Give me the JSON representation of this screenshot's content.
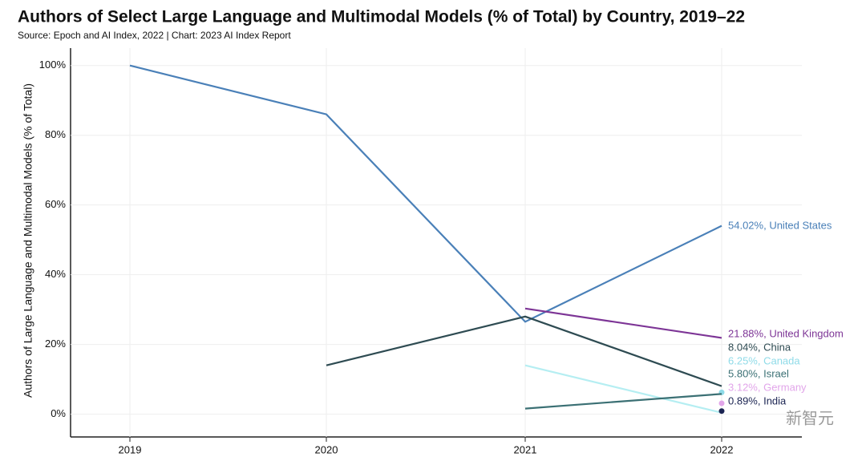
{
  "chart_data": {
    "type": "line",
    "title": "Authors of Select Large Language and Multimodal Models (% of Total) by Country, 2019–22",
    "subtitle": "Source:  Epoch and AI Index, 2022 | Chart: 2023 AI Index Report",
    "y_label": "Authors of Large Language and Multimodal Models (% of Total)",
    "watermark": "新智元",
    "categories": [
      "2019",
      "2020",
      "2021",
      "2022"
    ],
    "ylim": [
      -7,
      105
    ],
    "yticks": [
      {
        "value": 0,
        "label": "0%"
      },
      {
        "value": 20,
        "label": "20%"
      },
      {
        "value": 40,
        "label": "40%"
      },
      {
        "value": 60,
        "label": "60%"
      },
      {
        "value": 80,
        "label": "80%"
      },
      {
        "value": 100,
        "label": "100%"
      }
    ],
    "grid": true,
    "series": [
      {
        "label": "54.02%, United States",
        "color": "#4a80b8",
        "values": [
          100,
          86,
          26.5,
          54.02
        ]
      },
      {
        "label": "21.88%, United Kingdom",
        "color": "#7d3596",
        "values": [
          null,
          null,
          30.3,
          21.88
        ]
      },
      {
        "label": "8.04%, China",
        "color": "#2e4b52",
        "values": [
          null,
          14,
          28,
          8.04
        ]
      },
      {
        "label": "6.25%, Canada",
        "color": "#8fdbe8",
        "values": [
          null,
          null,
          null,
          6.25
        ]
      },
      {
        "color": "#b5eef2",
        "values": [
          null,
          null,
          14,
          0.4
        ]
      },
      {
        "label": "5.80%, Israel",
        "color": "#3b7074",
        "values": [
          null,
          null,
          1.6,
          5.8
        ]
      },
      {
        "label": "3.12%, Germany",
        "color": "#e2a6ea",
        "values": [
          null,
          null,
          null,
          3.12
        ]
      },
      {
        "label": "0.89%, India",
        "color": "#1b2452",
        "values": [
          null,
          null,
          null,
          0.89
        ]
      }
    ]
  }
}
